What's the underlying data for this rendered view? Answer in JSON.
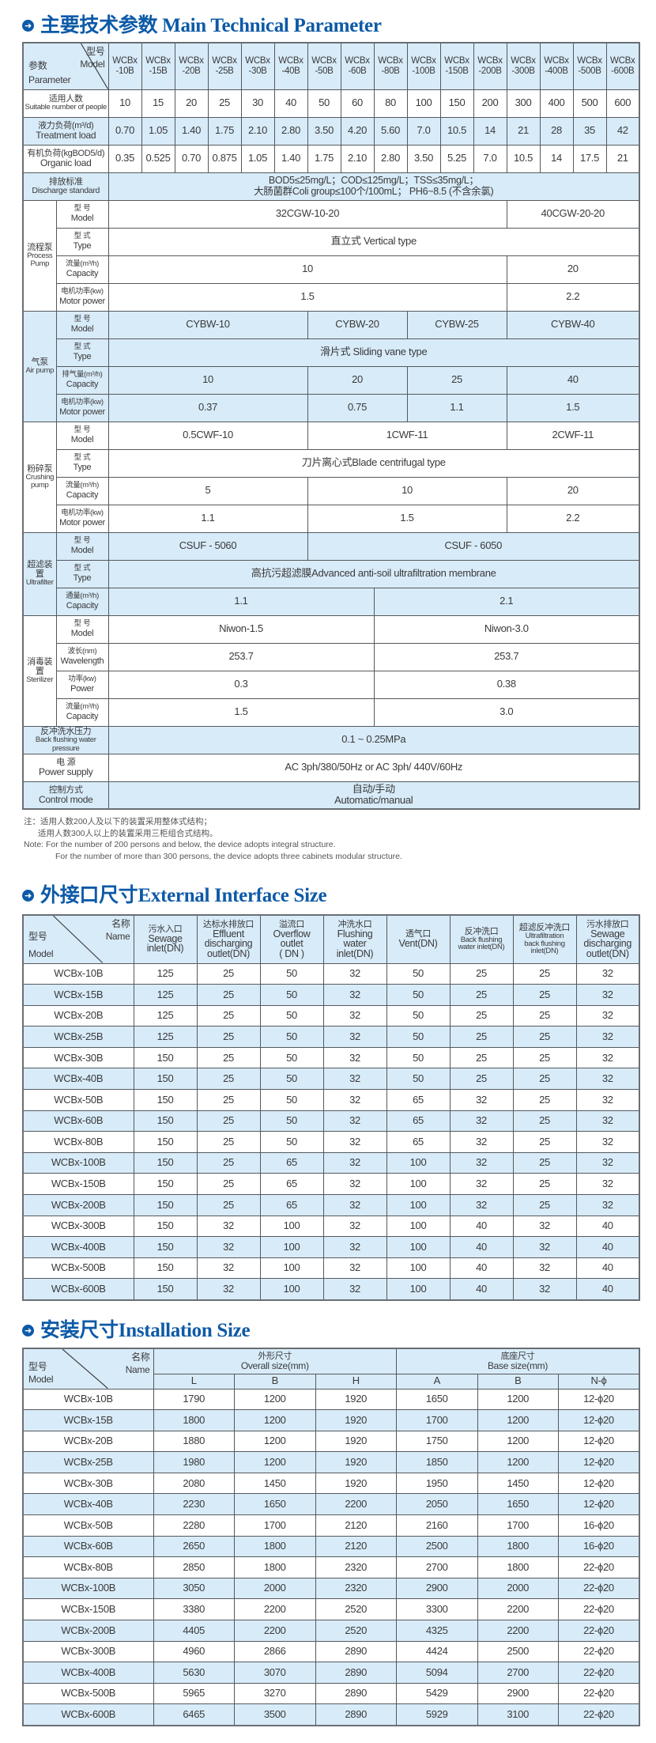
{
  "section1": {
    "title": "主要技术参数 Main Technical Parameter",
    "corner": {
      "model_cn": "型号",
      "model_en": "Model",
      "param_cn": "参数",
      "param_en": "Parameter"
    },
    "models": [
      "WCBx\n-10B",
      "WCBx\n-15B",
      "WCBx\n-20B",
      "WCBx\n-25B",
      "WCBx\n-30B",
      "WCBx\n-40B",
      "WCBx\n-50B",
      "WCBx\n-60B",
      "WCBx\n-80B",
      "WCBx\n-100B",
      "WCBx\n-150B",
      "WCBx\n-200B",
      "WCBx\n-300B",
      "WCBx\n-400B",
      "WCBx\n-500B",
      "WCBx\n-600B"
    ],
    "simple_rows": [
      {
        "cn": "适用人数",
        "en": "Suitable number of people",
        "small": true,
        "values": [
          "10",
          "15",
          "20",
          "25",
          "30",
          "40",
          "50",
          "60",
          "80",
          "100",
          "150",
          "200",
          "300",
          "400",
          "500",
          "600"
        ]
      },
      {
        "cn": "液力负荷(m³/d)",
        "en": "Treatment load",
        "values": [
          "0.70",
          "1.05",
          "1.40",
          "1.75",
          "2.10",
          "2.80",
          "3.50",
          "4.20",
          "5.60",
          "7.0",
          "10.5",
          "14",
          "21",
          "28",
          "35",
          "42"
        ]
      },
      {
        "cn": "有机负荷(kgBOD5/d)",
        "en": "Organic load",
        "values": [
          "0.35",
          "0.525",
          "0.70",
          "0.875",
          "1.05",
          "1.40",
          "1.75",
          "2.10",
          "2.80",
          "3.50",
          "5.25",
          "7.0",
          "10.5",
          "14",
          "17.5",
          "21"
        ]
      }
    ],
    "discharge": {
      "cn": "排放标准",
      "en": "Discharge standard",
      "line1": "BOD5≤25mg/L；COD≤125mg/L；TSS≤35mg/L；",
      "line2": "大肠菌群Coli group≤100个/100mL；   PH6~8.5 (不含余氯)"
    },
    "groups": [
      {
        "cn": "流程泵",
        "en": "Process Pump",
        "rows": [
          {
            "cn": "型 号",
            "en": "Model",
            "cells": [
              {
                "v": "32CGW-10-20",
                "span": 12
              },
              {
                "v": "40CGW-20-20",
                "span": 4
              }
            ]
          },
          {
            "cn": "型 式",
            "en": "Type",
            "cells": [
              {
                "v": "直立式 Vertical type",
                "span": 16
              }
            ]
          },
          {
            "cn": "流量(m³/h)",
            "en": "Capacity",
            "cells": [
              {
                "v": "10",
                "span": 12
              },
              {
                "v": "20",
                "span": 4
              }
            ]
          },
          {
            "cn": "电机功率(kw)",
            "en": "Motor power",
            "cells": [
              {
                "v": "1.5",
                "span": 12
              },
              {
                "v": "2.2",
                "span": 4
              }
            ]
          }
        ]
      },
      {
        "cn": "气泵",
        "en": "Air pump",
        "rows": [
          {
            "cn": "型 号",
            "en": "Model",
            "cells": [
              {
                "v": "CYBW-10",
                "span": 6
              },
              {
                "v": "CYBW-20",
                "span": 3
              },
              {
                "v": "CYBW-25",
                "span": 3
              },
              {
                "v": "CYBW-40",
                "span": 4
              }
            ]
          },
          {
            "cn": "型 式",
            "en": "Type",
            "cells": [
              {
                "v": "滑片式 Sliding vane type",
                "span": 16
              }
            ]
          },
          {
            "cn": "排气量(m³/h)",
            "en": "Capacity",
            "cells": [
              {
                "v": "10",
                "span": 6
              },
              {
                "v": "20",
                "span": 3
              },
              {
                "v": "25",
                "span": 3
              },
              {
                "v": "40",
                "span": 4
              }
            ]
          },
          {
            "cn": "电机功率(kw)",
            "en": "Motor power",
            "cells": [
              {
                "v": "0.37",
                "span": 6
              },
              {
                "v": "0.75",
                "span": 3
              },
              {
                "v": "1.1",
                "span": 3
              },
              {
                "v": "1.5",
                "span": 4
              }
            ]
          }
        ]
      },
      {
        "cn": "粉碎泵",
        "en": "Crushing pump",
        "rows": [
          {
            "cn": "型 号",
            "en": "Model",
            "cells": [
              {
                "v": "0.5CWF-10",
                "span": 6
              },
              {
                "v": "1CWF-11",
                "span": 6
              },
              {
                "v": "2CWF-11",
                "span": 4
              }
            ]
          },
          {
            "cn": "型 式",
            "en": "Type",
            "cells": [
              {
                "v": "刀片离心式Blade centrifugal type",
                "span": 16
              }
            ]
          },
          {
            "cn": "流量(m³/h)",
            "en": "Capacity",
            "cells": [
              {
                "v": "5",
                "span": 6
              },
              {
                "v": "10",
                "span": 6
              },
              {
                "v": "20",
                "span": 4
              }
            ]
          },
          {
            "cn": "电机功率(kw)",
            "en": "Motor power",
            "cells": [
              {
                "v": "1.1",
                "span": 6
              },
              {
                "v": "1.5",
                "span": 6
              },
              {
                "v": "2.2",
                "span": 4
              }
            ]
          }
        ]
      },
      {
        "cn": "超滤装置",
        "en": "Ultrafilter",
        "rows": [
          {
            "cn": "型 号",
            "en": "Model",
            "cells": [
              {
                "v": "CSUF - 5060",
                "span": 6
              },
              {
                "v": "CSUF - 6050",
                "span": 10
              }
            ]
          },
          {
            "cn": "型 式",
            "en": "Type",
            "cells": [
              {
                "v": "高抗污超滤膜Advanced anti-soil ultrafiltration membrane",
                "span": 16
              }
            ]
          },
          {
            "cn": "通量(m³/h)",
            "en": "Capacity",
            "cells": [
              {
                "v": "1.1",
                "span": 8
              },
              {
                "v": "2.1",
                "span": 8
              }
            ]
          }
        ]
      },
      {
        "cn": "消毒装置",
        "en": "Sterilizer",
        "rows": [
          {
            "cn": "型 号",
            "en": "Model",
            "cells": [
              {
                "v": "Niwon-1.5",
                "span": 8
              },
              {
                "v": "Niwon-3.0",
                "span": 8
              }
            ]
          },
          {
            "cn": "波长(nm)",
            "en": "Wavelength",
            "cells": [
              {
                "v": "253.7",
                "span": 8
              },
              {
                "v": "253.7",
                "span": 8
              }
            ]
          },
          {
            "cn": "功率(kw)",
            "en": "Power",
            "cells": [
              {
                "v": "0.3",
                "span": 8
              },
              {
                "v": "0.38",
                "span": 8
              }
            ]
          },
          {
            "cn": "流量(m³/h)",
            "en": "Capacity",
            "cells": [
              {
                "v": "1.5",
                "span": 8
              },
              {
                "v": "3.0",
                "span": 8
              }
            ]
          }
        ]
      }
    ],
    "tail_rows": [
      {
        "cn": "反冲洗水压力",
        "en": "Back flushing water pressure",
        "small": true,
        "value": "0.1 ~ 0.25MPa"
      },
      {
        "cn": "电  源",
        "en": "Power supply",
        "value": "AC 3ph/380/50Hz or AC 3ph/ 440V/60Hz"
      },
      {
        "cn": "控制方式",
        "en": "Control mode",
        "value": "自动/手动\nAutomatic/manual"
      }
    ],
    "notes": [
      "注：适用人数200人及以下的装置采用整体式结构；",
      "适用人数300人以上的装置采用三柜组合式结构。",
      "Note: For the number of 200 persons and below, the device adopts integral structure.",
      "For the number of more than 300 persons, the device adopts three cabinets modular structure."
    ]
  },
  "section2": {
    "title": "外接口尺寸External Interface Size",
    "corner": {
      "name_cn": "名称",
      "name_en": "Name",
      "model_cn": "型号",
      "model_en": "Model"
    },
    "columns": [
      {
        "cn": "污水入口",
        "en": "Sewage\ninlet(DN)"
      },
      {
        "cn": "达标水排放口",
        "en": "Effluent\ndischarging\noutlet(DN)"
      },
      {
        "cn": "溢流口",
        "en": "Overflow\noutlet\n( DN )"
      },
      {
        "cn": "冲洗水口",
        "en": "Flushing\nwater\ninlet(DN)"
      },
      {
        "cn": "透气口",
        "en": "Vent(DN)"
      },
      {
        "cn": "反冲洗口",
        "en": "Back flushing\nwater inlet(DN)",
        "small": true
      },
      {
        "cn": "超滤反冲洗口",
        "en": "Ultrafiltration\nback flushing\ninlet(DN)",
        "small": true
      },
      {
        "cn": "污水排放口",
        "en": "Sewage\ndischarging\noutlet(DN)"
      }
    ],
    "rows": [
      [
        "WCBx-10B",
        "125",
        "25",
        "50",
        "32",
        "50",
        "25",
        "25",
        "32"
      ],
      [
        "WCBx-15B",
        "125",
        "25",
        "50",
        "32",
        "50",
        "25",
        "25",
        "32"
      ],
      [
        "WCBx-20B",
        "125",
        "25",
        "50",
        "32",
        "50",
        "25",
        "25",
        "32"
      ],
      [
        "WCBx-25B",
        "125",
        "25",
        "50",
        "32",
        "50",
        "25",
        "25",
        "32"
      ],
      [
        "WCBx-30B",
        "150",
        "25",
        "50",
        "32",
        "50",
        "25",
        "25",
        "32"
      ],
      [
        "WCBx-40B",
        "150",
        "25",
        "50",
        "32",
        "50",
        "25",
        "25",
        "32"
      ],
      [
        "WCBx-50B",
        "150",
        "25",
        "50",
        "32",
        "65",
        "32",
        "25",
        "32"
      ],
      [
        "WCBx-60B",
        "150",
        "25",
        "50",
        "32",
        "65",
        "32",
        "25",
        "32"
      ],
      [
        "WCBx-80B",
        "150",
        "25",
        "50",
        "32",
        "65",
        "32",
        "25",
        "32"
      ],
      [
        "WCBx-100B",
        "150",
        "25",
        "65",
        "32",
        "100",
        "32",
        "25",
        "32"
      ],
      [
        "WCBx-150B",
        "150",
        "25",
        "65",
        "32",
        "100",
        "32",
        "25",
        "32"
      ],
      [
        "WCBx-200B",
        "150",
        "25",
        "65",
        "32",
        "100",
        "32",
        "25",
        "32"
      ],
      [
        "WCBx-300B",
        "150",
        "32",
        "100",
        "32",
        "100",
        "40",
        "32",
        "40"
      ],
      [
        "WCBx-400B",
        "150",
        "32",
        "100",
        "32",
        "100",
        "40",
        "32",
        "40"
      ],
      [
        "WCBx-500B",
        "150",
        "32",
        "100",
        "32",
        "100",
        "40",
        "32",
        "40"
      ],
      [
        "WCBx-600B",
        "150",
        "32",
        "100",
        "32",
        "100",
        "40",
        "32",
        "40"
      ]
    ]
  },
  "section3": {
    "title": "安装尺寸Installation Size",
    "corner": {
      "name_cn": "名称",
      "name_en": "Name",
      "model_cn": "型号",
      "model_en": "Model"
    },
    "groups": [
      {
        "cn": "外形尺寸",
        "en": "Overall size(mm)"
      },
      {
        "cn": "底座尺寸",
        "en": "Base size(mm)"
      }
    ],
    "sub": [
      "L",
      "B",
      "H",
      "A",
      "B",
      "N-ϕ"
    ],
    "rows": [
      [
        "WCBx-10B",
        "1790",
        "1200",
        "1920",
        "1650",
        "1200",
        "12-ϕ20"
      ],
      [
        "WCBx-15B",
        "1800",
        "1200",
        "1920",
        "1700",
        "1200",
        "12-ϕ20"
      ],
      [
        "WCBx-20B",
        "1880",
        "1200",
        "1920",
        "1750",
        "1200",
        "12-ϕ20"
      ],
      [
        "WCBx-25B",
        "1980",
        "1200",
        "1920",
        "1850",
        "1200",
        "12-ϕ20"
      ],
      [
        "WCBx-30B",
        "2080",
        "1450",
        "1920",
        "1950",
        "1450",
        "12-ϕ20"
      ],
      [
        "WCBx-40B",
        "2230",
        "1650",
        "2200",
        "2050",
        "1650",
        "12-ϕ20"
      ],
      [
        "WCBx-50B",
        "2280",
        "1700",
        "2120",
        "2160",
        "1700",
        "16-ϕ20"
      ],
      [
        "WCBx-60B",
        "2650",
        "1800",
        "2120",
        "2500",
        "1800",
        "16-ϕ20"
      ],
      [
        "WCBx-80B",
        "2850",
        "1800",
        "2320",
        "2700",
        "1800",
        "22-ϕ20"
      ],
      [
        "WCBx-100B",
        "3050",
        "2000",
        "2320",
        "2900",
        "2000",
        "22-ϕ20"
      ],
      [
        "WCBx-150B",
        "3380",
        "2200",
        "2520",
        "3300",
        "2200",
        "22-ϕ20"
      ],
      [
        "WCBx-200B",
        "4405",
        "2200",
        "2520",
        "4325",
        "2200",
        "22-ϕ20"
      ],
      [
        "WCBx-300B",
        "4960",
        "2866",
        "2890",
        "4424",
        "2500",
        "22-ϕ20"
      ],
      [
        "WCBx-400B",
        "5630",
        "3070",
        "2890",
        "5094",
        "2700",
        "22-ϕ20"
      ],
      [
        "WCBx-500B",
        "5965",
        "3270",
        "2890",
        "5429",
        "2900",
        "22-ϕ20"
      ],
      [
        "WCBx-600B",
        "6465",
        "3500",
        "2890",
        "5929",
        "3100",
        "22-ϕ20"
      ]
    ]
  },
  "colors": {
    "title": "#0d5aa7",
    "row_blue": "#d8ebf9",
    "border": "#55595d"
  }
}
